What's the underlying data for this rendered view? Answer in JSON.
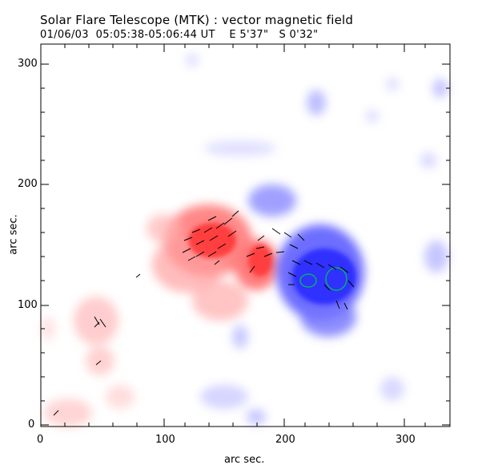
{
  "figure": {
    "title": "Solar Flare Telescope (MTK) : vector magnetic field",
    "subtitle": "01/06/03  05:05:38-05:06:44 UT    E 5'37\"   S 0'32\"",
    "xlabel": "arc sec.",
    "ylabel": "arc sec.",
    "x_ticks": [
      "0",
      "100",
      "200",
      "300"
    ],
    "y_ticks": [
      "0",
      "100",
      "200",
      "300"
    ]
  },
  "colors": {
    "positive_polarity": "#ff3a3a",
    "negative_polarity": "#3a3aff",
    "contour": "#00c080",
    "vectors": "#000000"
  },
  "chart_data": {
    "type": "heatmap",
    "title": "Solar Flare Telescope (MTK) : vector magnetic field",
    "xlabel": "arc sec.",
    "ylabel": "arc sec.",
    "xlim": [
      0,
      340
    ],
    "ylim": [
      0,
      315
    ],
    "grid": false
  }
}
